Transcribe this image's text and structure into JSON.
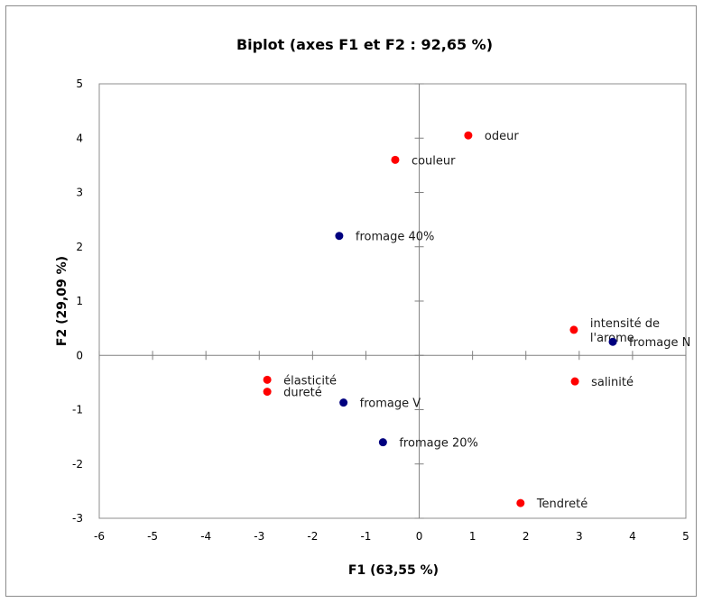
{
  "chart_data": {
    "type": "scatter",
    "title": "Biplot (axes F1 et F2 : 92,65 %)",
    "xlabel": "F1 (63,55 %)",
    "ylabel": "F2 (29,09 %)",
    "xlim": [
      -6,
      5
    ],
    "ylim": [
      -3,
      5
    ],
    "x_ticks": [
      "-6",
      "-5",
      "-4",
      "-3",
      "-2",
      "-1",
      "0",
      "1",
      "2",
      "3",
      "4",
      "5"
    ],
    "y_ticks": [
      "5",
      "4",
      "3",
      "2",
      "1",
      "0",
      "-1",
      "-2",
      "-3"
    ],
    "grid": false,
    "legend": "none",
    "colors": {
      "variables": "#ff0000",
      "observations": "#00007f",
      "axis": "#808080"
    },
    "series": [
      {
        "points": [
          {
            "label": "odeur",
            "x": 0.92,
            "y": 4.05
          },
          {
            "label": "couleur",
            "x": -0.45,
            "y": 3.6
          },
          {
            "label": "intensité de l'arome",
            "x": 2.9,
            "y": 0.47
          },
          {
            "label": "salinité",
            "x": 2.92,
            "y": -0.48
          },
          {
            "label": "élasticité",
            "x": -2.85,
            "y": -0.45
          },
          {
            "label": "dureté",
            "x": -2.85,
            "y": -0.67
          },
          {
            "label": "Tendreté",
            "x": 1.9,
            "y": -2.72
          }
        ]
      },
      {
        "points": [
          {
            "label": "fromage 40%",
            "x": -1.5,
            "y": 2.2
          },
          {
            "label": "fromage N",
            "x": 3.63,
            "y": 0.25
          },
          {
            "label": "fromage V",
            "x": -1.42,
            "y": -0.87
          },
          {
            "label": "fromage 20%",
            "x": -0.68,
            "y": -1.6
          }
        ]
      }
    ]
  }
}
